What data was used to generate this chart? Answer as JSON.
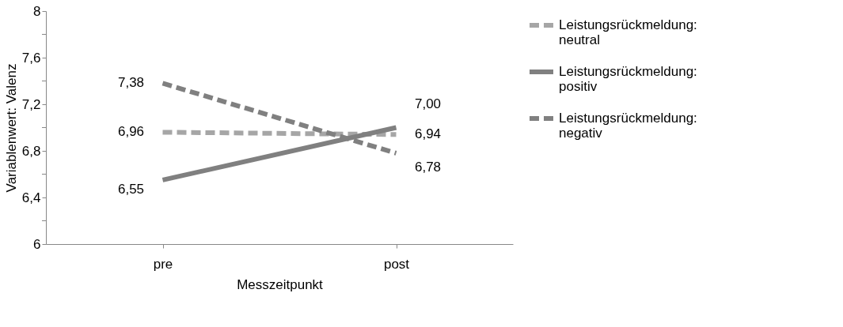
{
  "chart_data": {
    "type": "line",
    "xlabel": "Messzeitpunkt",
    "ylabel": "Variablenwert: Valenz",
    "categories": [
      "pre",
      "post"
    ],
    "series": [
      {
        "name": "Leistungsrückmeldung: neutral",
        "color": "#a6a6a6",
        "line_style": "dashed",
        "values": [
          6.96,
          6.94
        ],
        "value_labels": [
          "6,96",
          "6,94"
        ]
      },
      {
        "name": "Leistungsrückmeldung: positiv",
        "color": "#808080",
        "line_style": "solid",
        "values": [
          6.55,
          7.0
        ],
        "value_labels": [
          "6,55",
          "7,00"
        ]
      },
      {
        "name": "Leistungsrückmeldung: negativ",
        "color": "#808080",
        "line_style": "dashed",
        "values": [
          7.38,
          6.78
        ],
        "value_labels": [
          "7,38",
          "6,78"
        ]
      }
    ],
    "ylim": [
      6,
      8
    ],
    "yticks": [
      6,
      {
        "value": 6.2,
        "label": null
      },
      {
        "value": 6.4,
        "label": "6,4"
      },
      {
        "value": 6.6,
        "label": null
      },
      {
        "value": 6.8,
        "label": "6,8"
      },
      {
        "value": 7.0,
        "label": null
      },
      {
        "value": 7.2,
        "label": "7,2"
      },
      {
        "value": 7.4,
        "label": null
      },
      {
        "value": 7.6,
        "label": "7,6"
      },
      {
        "value": 7.8,
        "label": null
      },
      8
    ],
    "grid": false,
    "legend": "right",
    "marker": "none"
  }
}
